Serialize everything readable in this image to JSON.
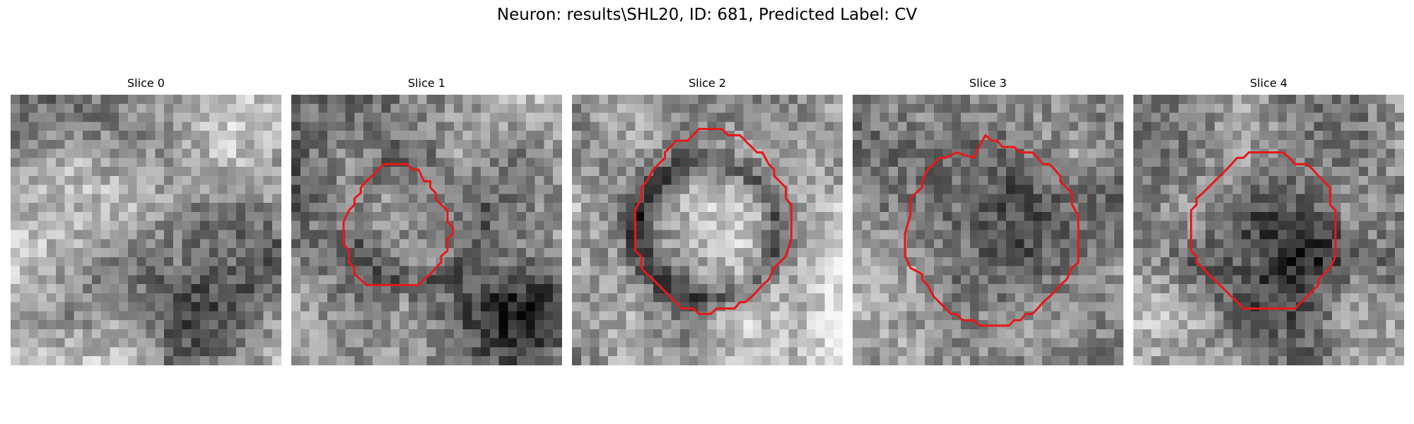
{
  "figure": {
    "title": "Neuron: results\\SHL20, ID: 681, Predicted Label: CV",
    "outline_color": "#e31a1c"
  },
  "slices": [
    {
      "title": "Slice 0",
      "has_outline": false
    },
    {
      "title": "Slice 1",
      "has_outline": true
    },
    {
      "title": "Slice 2",
      "has_outline": true
    },
    {
      "title": "Slice 3",
      "has_outline": true
    },
    {
      "title": "Slice 4",
      "has_outline": true
    }
  ]
}
